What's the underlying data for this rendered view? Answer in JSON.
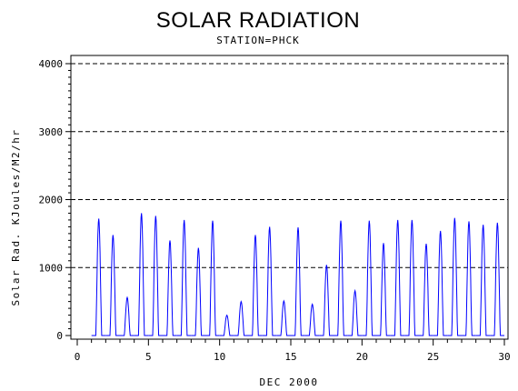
{
  "chart_data": {
    "type": "line",
    "title": "SOLAR RADIATION",
    "subtitle": "STATION=PHCK",
    "xlabel": "DEC 2000",
    "ylabel": "Solar Rad. KJoules/M2/hr",
    "xlim": [
      0,
      30
    ],
    "ylim": [
      0,
      4000
    ],
    "xticks": [
      0,
      5,
      10,
      15,
      20,
      25,
      30
    ],
    "yticks": [
      0,
      1000,
      2000,
      3000,
      4000
    ],
    "ytick_labels": [
      "0",
      "1000",
      "2000",
      "3000",
      "4000"
    ],
    "grid": "dashed horizontal at 1000, 2000, 3000, 4000",
    "series": [
      {
        "color": "#0000ff",
        "daily_peaks": [
          {
            "day": 1,
            "peak": 1720
          },
          {
            "day": 2,
            "peak": 1480
          },
          {
            "day": 3,
            "peak": 560
          },
          {
            "day": 4,
            "peak": 1800
          },
          {
            "day": 5,
            "peak": 1760
          },
          {
            "day": 6,
            "peak": 1400
          },
          {
            "day": 7,
            "peak": 1700
          },
          {
            "day": 8,
            "peak": 1290
          },
          {
            "day": 9,
            "peak": 1690
          },
          {
            "day": 10,
            "peak": 300
          },
          {
            "day": 11,
            "peak": 500
          },
          {
            "day": 12,
            "peak": 1480
          },
          {
            "day": 13,
            "peak": 1600
          },
          {
            "day": 14,
            "peak": 510
          },
          {
            "day": 15,
            "peak": 1590
          },
          {
            "day": 16,
            "peak": 460
          },
          {
            "day": 17,
            "peak": 1040
          },
          {
            "day": 18,
            "peak": 1690
          },
          {
            "day": 19,
            "peak": 660
          },
          {
            "day": 20,
            "peak": 1690
          },
          {
            "day": 21,
            "peak": 1360
          },
          {
            "day": 22,
            "peak": 1700
          },
          {
            "day": 23,
            "peak": 1700
          },
          {
            "day": 24,
            "peak": 1350
          },
          {
            "day": 25,
            "peak": 1540
          },
          {
            "day": 26,
            "peak": 1730
          },
          {
            "day": 27,
            "peak": 1680
          },
          {
            "day": 28,
            "peak": 1630
          },
          {
            "day": 29,
            "peak": 1660
          }
        ]
      }
    ]
  }
}
